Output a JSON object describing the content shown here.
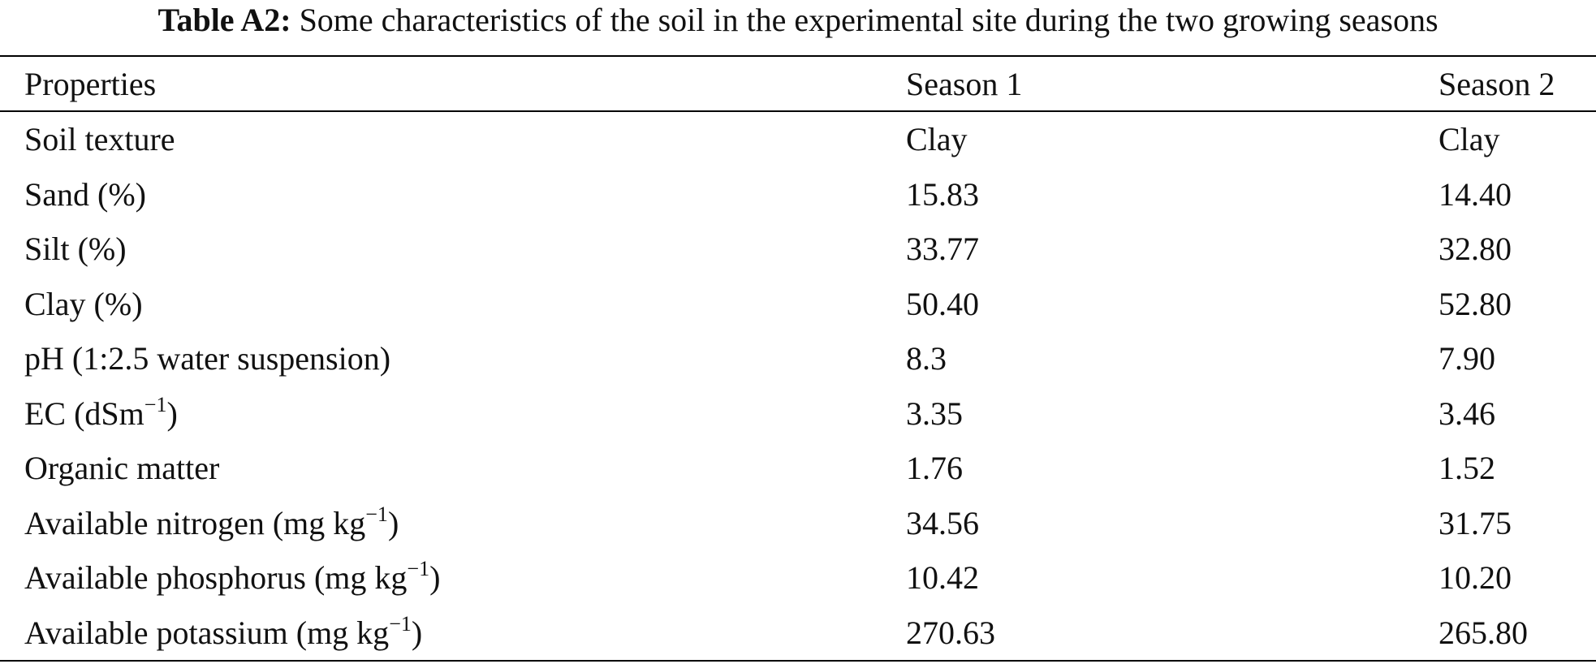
{
  "table": {
    "caption_label": "Table A2:",
    "caption_text": "Some characteristics of the soil in the experimental site during the two growing seasons",
    "headers": [
      "Properties",
      "Season 1",
      "Season 2"
    ],
    "rows": [
      {
        "property": "Soil texture",
        "sup": "",
        "close": "",
        "season1": "Clay",
        "season2": "Clay"
      },
      {
        "property": "Sand (%)",
        "sup": "",
        "close": "",
        "season1": "15.83",
        "season2": "14.40"
      },
      {
        "property": "Silt (%)",
        "sup": "",
        "close": "",
        "season1": "33.77",
        "season2": "32.80"
      },
      {
        "property": "Clay (%)",
        "sup": "",
        "close": "",
        "season1": "50.40",
        "season2": "52.80"
      },
      {
        "property": "pH (1:2.5 water suspension)",
        "sup": "",
        "close": "",
        "season1": "8.3",
        "season2": "7.90"
      },
      {
        "property": "EC (dSm",
        "sup": "−1",
        "close": ")",
        "season1": "3.35",
        "season2": "3.46"
      },
      {
        "property": "Organic matter",
        "sup": "",
        "close": "",
        "season1": "1.76",
        "season2": "1.52"
      },
      {
        "property": "Available nitrogen (mg kg",
        "sup": "−1",
        "close": ")",
        "season1": "34.56",
        "season2": "31.75"
      },
      {
        "property": "Available phosphorus (mg kg",
        "sup": "−1",
        "close": ")",
        "season1": "10.42",
        "season2": "10.20"
      },
      {
        "property": "Available potassium (mg kg",
        "sup": "−1",
        "close": ")",
        "season1": "270.63",
        "season2": "265.80"
      }
    ]
  }
}
